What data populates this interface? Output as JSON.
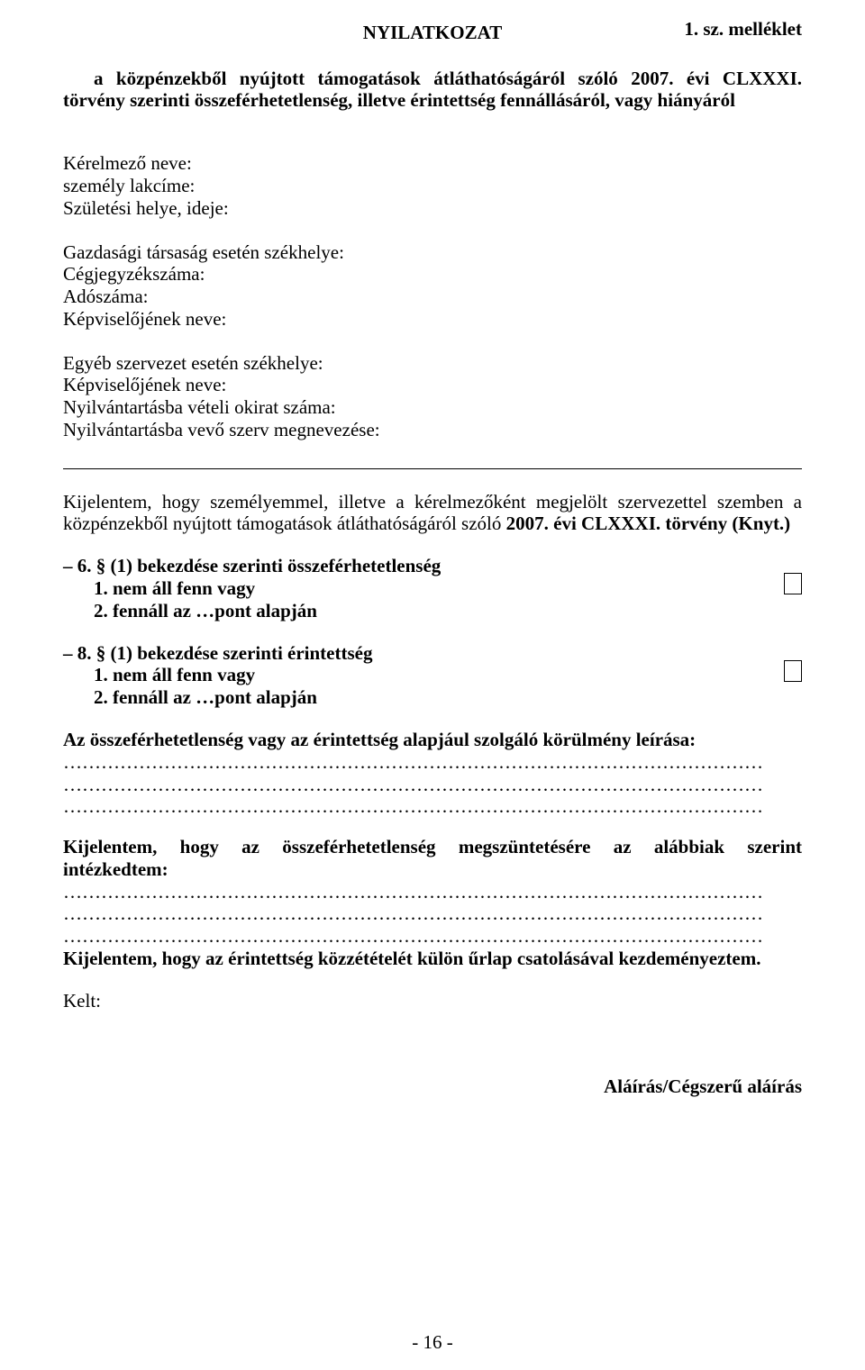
{
  "header": {
    "annex": "1. sz. melléklet",
    "title": "NYILATKOZAT"
  },
  "intro": "a közpénzekből nyújtott támogatások átláthatóságáról szóló 2007. évi CLXXXI. törvény szerinti összeférhetetlenség, illetve érintettség fennállásáról, vagy hiányáról",
  "applicant": {
    "name_label": "Kérelmező neve:",
    "address_label": "személy lakcíme:",
    "birth_label": "Születési helye, ideje:"
  },
  "company": {
    "seat_label": "Gazdasági társaság esetén székhelye:",
    "regno_label": "Cégjegyzékszáma:",
    "taxno_label": "Adószáma:",
    "rep_label": "Képviselőjének neve:"
  },
  "other_org": {
    "seat_label": "Egyéb szervezet esetén székhelye:",
    "rep_label": "Képviselőjének neve:",
    "reg_doc_label": "Nyilvántartásba vételi okirat száma:",
    "reg_body_label": "Nyilvántartásba vevő szerv megnevezése:"
  },
  "declaration": {
    "text_pre": "Kijelentem, hogy személyemmel, illetve a kérelmezőként megjelölt szervezettel szemben a közpénzekből nyújtott támogatások átláthatóságáról szóló ",
    "law_bold": "2007. évi CLXXXI. törvény (Knyt.)"
  },
  "section6": {
    "heading": "– 6. § (1) bekezdése szerinti összeférhetetlenség",
    "opt1": "1. nem áll fenn vagy",
    "opt2": "2. fennáll az …pont alapján"
  },
  "section8": {
    "heading": "– 8. § (1) bekezdése szerinti érintettség",
    "opt1": "1. nem áll fenn vagy",
    "opt2": "2. fennáll az …pont alapján"
  },
  "circumstance_heading": "Az összeférhetetlenség vagy az érintettség alapjául szolgáló körülmény leírása:",
  "dots": "…………………………………………………………………………………………………",
  "stmt_measures_l1": "Kijelentem, hogy az összeférhetetlenség megszüntetésére az alábbiak szerint",
  "stmt_measures_l2": "intézkedtem:",
  "stmt_publish": "Kijelentem, hogy az érintettség közzétételét külön űrlap csatolásával kezdeményeztem.",
  "kelt": "Kelt:",
  "signature": "Aláírás/Cégszerű aláírás",
  "page_number": "- 16 -"
}
